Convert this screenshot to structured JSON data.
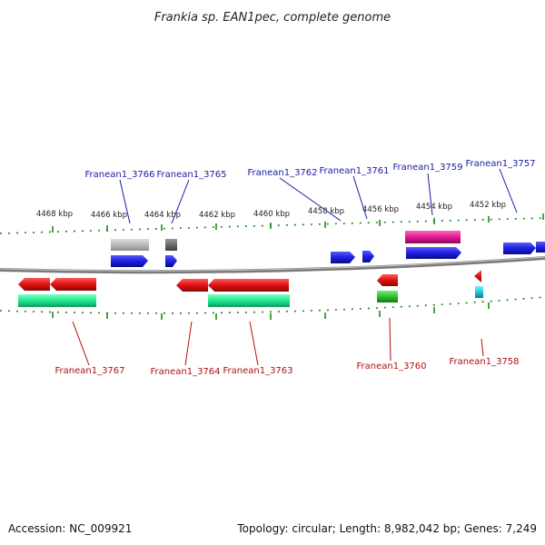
{
  "title": "Frankia sp. EAN1pec, complete genome",
  "ticks": [
    "4468 kbp",
    "4466 kbp",
    "4464 kbp",
    "4462 kbp",
    "4460 kbp",
    "4458 kbp",
    "4456 kbp",
    "4454 kbp",
    "4452 kbp"
  ],
  "top_labels": [
    "Franean1_3766",
    "Franean1_3765",
    "Franean1_3762",
    "Franean1_3761",
    "Franean1_3759",
    "Franean1_3757"
  ],
  "bottom_labels": [
    "Franean1_3767",
    "Franean1_3764",
    "Franean1_3763",
    "Franean1_3760",
    "Franean1_3758"
  ],
  "footer": {
    "accession": "Accession: NC_009921",
    "topology": "Topology: circular; Length: 8,982,042 bp; Genes: 7,249"
  },
  "colors": {
    "forward_gene": "#1f1fe0",
    "reverse_gene": "#e01010",
    "gray_feature": "#b8b8b8",
    "dark_feature": "#6a6a6a",
    "magenta_feature": "#e01890",
    "green_feature": "#20e890",
    "lime_feature": "#30c030",
    "cyan_feature": "#20c8d8",
    "backbone": "#777777",
    "ruler": "#1a8a1a",
    "top_label": "#1a1aa6",
    "bottom_label": "#b01010"
  }
}
